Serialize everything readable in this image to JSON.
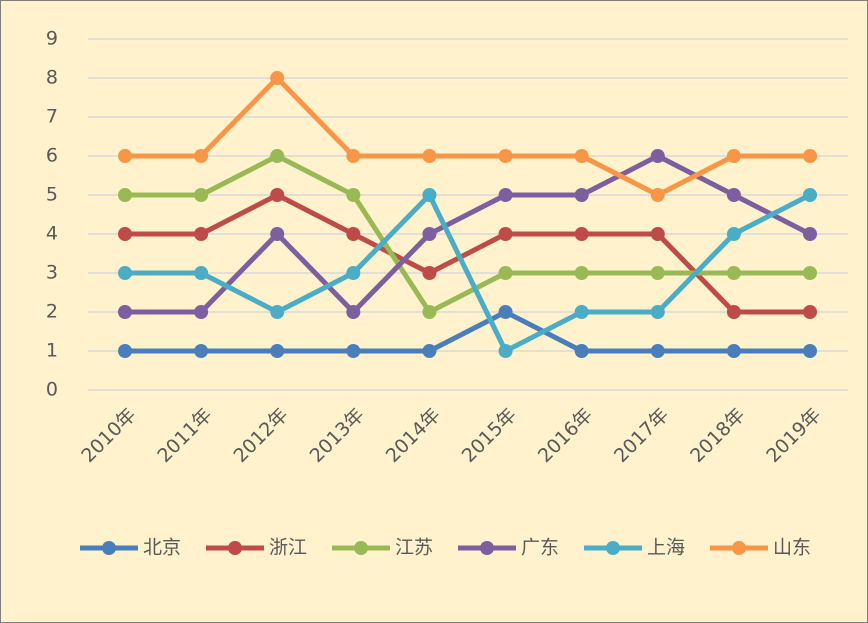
{
  "chart_data": {
    "type": "line",
    "categories": [
      "2010年",
      "2011年",
      "2012年",
      "2013年",
      "2014年",
      "2015年",
      "2016年",
      "2017年",
      "2018年",
      "2019年"
    ],
    "series": [
      {
        "name": "北京",
        "color": "#4a7ebb",
        "values": [
          1,
          1,
          1,
          1,
          1,
          2,
          1,
          1,
          1,
          1
        ]
      },
      {
        "name": "浙江",
        "color": "#be4b48",
        "values": [
          4,
          4,
          5,
          4,
          3,
          4,
          4,
          4,
          2,
          2
        ]
      },
      {
        "name": "江苏",
        "color": "#98b954",
        "values": [
          5,
          5,
          6,
          5,
          2,
          3,
          3,
          3,
          3,
          3
        ]
      },
      {
        "name": "广东",
        "color": "#7d5fa0",
        "values": [
          2,
          2,
          4,
          2,
          4,
          5,
          5,
          6,
          5,
          4
        ]
      },
      {
        "name": "上海",
        "color": "#4bacc6",
        "values": [
          3,
          3,
          2,
          3,
          5,
          1,
          2,
          2,
          4,
          5
        ]
      },
      {
        "name": "山东",
        "color": "#f79646",
        "values": [
          6,
          6,
          8,
          6,
          6,
          6,
          6,
          5,
          6,
          6
        ]
      }
    ],
    "ylim": [
      0,
      9
    ],
    "yticks": [
      0,
      1,
      2,
      3,
      4,
      5,
      6,
      7,
      8,
      9
    ],
    "grid": true,
    "legend": "bottom"
  }
}
